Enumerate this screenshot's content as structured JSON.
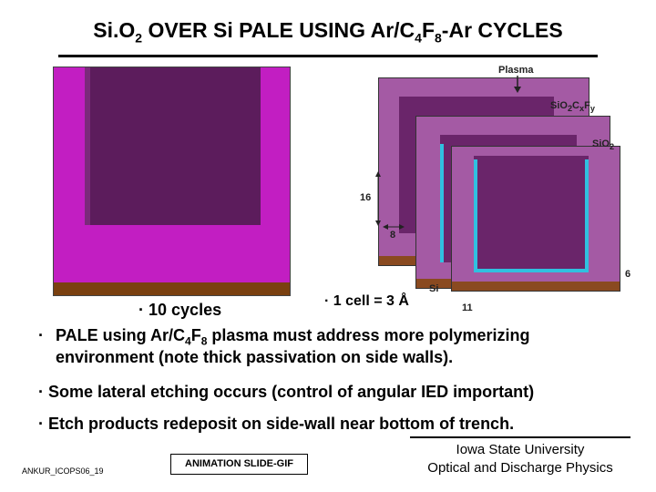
{
  "title": {
    "pre": "Si.O",
    "sub1": "2",
    "mid": " OVER Si PALE USING Ar/C",
    "sub2": "4",
    "mid2": "F",
    "sub3": "8",
    "post": "-Ar CYCLES"
  },
  "labels": {
    "plasma": "Plasma",
    "sio2cxfy_pre": "SiO",
    "sio2cxfy_s1": "2",
    "sio2cxfy_mid": "C",
    "sio2cxfy_s2": "x",
    "sio2cxfy_mid2": "F",
    "sio2cxfy_s3": "y",
    "sio2_pre": "SiO",
    "sio2_s": "2",
    "dim16": "16",
    "dim8": "8",
    "si": "Si",
    "dim11": "11",
    "dim6": "6"
  },
  "caption_cycles": "10 cycles",
  "caption_cell": "1 cell = 3 Å",
  "bullets": [
    {
      "pre": "PALE using Ar/C",
      "s1": "4",
      "mid": "F",
      "s2": "8",
      "post": " plasma must address more polymerizing",
      "line2": "environment (note thick passivation on side walls)."
    },
    {
      "text": "Some lateral etching occurs (control of angular IED important)"
    },
    {
      "text": "Etch products redeposit on side-wall near bottom of trench."
    }
  ],
  "footer": {
    "left": "ANKUR_ICOPS06_19",
    "animation": "ANIMATION SLIDE-GIF",
    "org1": "Iowa State University",
    "org2": "Optical and Discharge Physics"
  },
  "colors": {
    "substrate": "#c21ec2",
    "etched": "#5c1c5c",
    "silicon": "#7a4010",
    "passivation": "#30c0e0"
  }
}
